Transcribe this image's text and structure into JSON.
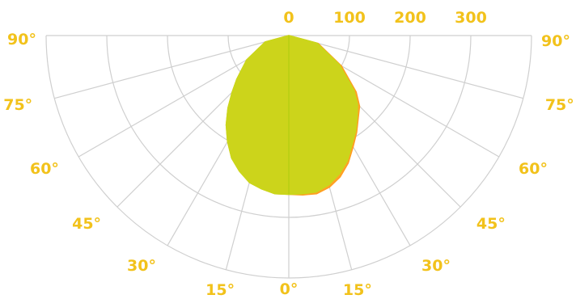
{
  "chart_data": {
    "type": "polar",
    "title": "",
    "radial_axis": {
      "tick_labels": [
        "0",
        "100",
        "200",
        "300"
      ],
      "max": 400
    },
    "angle_axis": {
      "tick_labels_left": [
        "90°",
        "75°",
        "60°",
        "45°",
        "30°",
        "15°"
      ],
      "center_label": "0°",
      "tick_labels_right": [
        "15°",
        "30°",
        "45°",
        "60°",
        "75°",
        "90°"
      ]
    },
    "grid": true,
    "series": [
      {
        "color": "#ff9f1f",
        "angles": [
          -90,
          -75,
          -60,
          -50,
          -45,
          -40,
          -35,
          -30,
          -25,
          -20,
          -15,
          -10,
          -5,
          0,
          5,
          10,
          15,
          20,
          25,
          30,
          35,
          40,
          45,
          50,
          60,
          75,
          90
        ],
        "values": [
          0,
          40,
          80,
          112,
          132,
          156,
          180,
          202,
          223,
          238,
          251,
          257,
          262,
          262,
          264,
          265,
          259,
          248,
          232,
          212,
          195,
          178,
          165,
          145,
          100,
          50,
          0
        ]
      },
      {
        "color": "#c8d81a",
        "angles": [
          -90,
          -75,
          -60,
          -50,
          -45,
          -40,
          -35,
          -30,
          -25,
          -20,
          -15,
          -10,
          -5,
          0,
          5,
          10,
          15,
          20,
          25,
          30,
          35,
          40,
          45,
          50,
          60,
          75,
          90
        ],
        "values": [
          0,
          40,
          80,
          112,
          132,
          156,
          180,
          202,
          223,
          238,
          251,
          257,
          262,
          262,
          262,
          262,
          255,
          243,
          228,
          208,
          192,
          175,
          160,
          140,
          96,
          48,
          0
        ]
      }
    ]
  }
}
